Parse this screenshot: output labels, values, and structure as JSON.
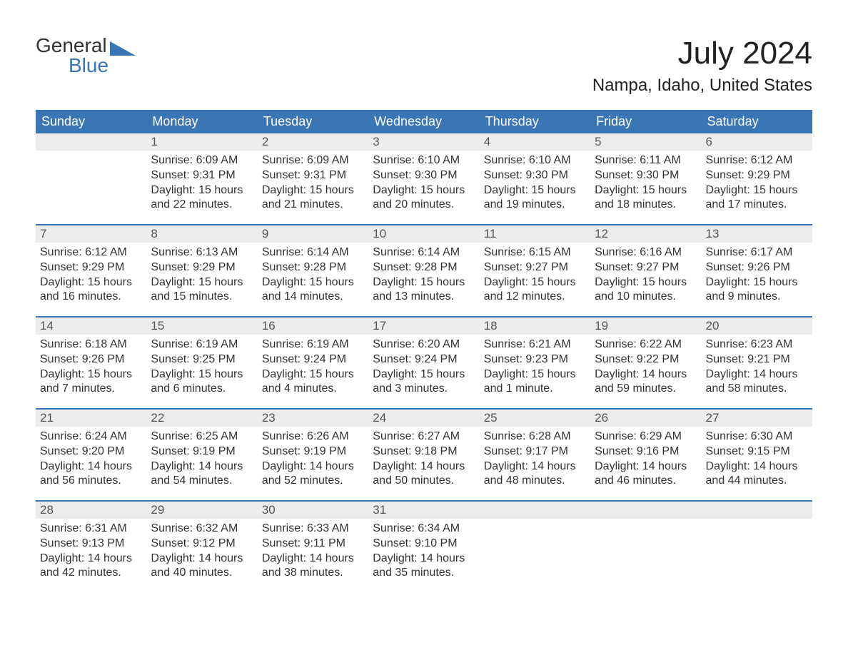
{
  "logo": {
    "word_top": "General",
    "word_bottom": "Blue",
    "flag_color": "#3a75b5",
    "text_gray": "#333333",
    "text_blue": "#3a75b5"
  },
  "title": {
    "month": "July 2024",
    "location": "Nampa, Idaho, United States"
  },
  "colors": {
    "header_bg": "#3a75b5",
    "header_text": "#ffffff",
    "daynum_bg": "#ececec",
    "daynum_text": "#555555",
    "body_text": "#333333",
    "week_border": "#3a75b5",
    "page_bg": "#ffffff"
  },
  "typography": {
    "title_fontsize": 44,
    "location_fontsize": 24,
    "dayheader_fontsize": 18,
    "daynum_fontsize": 17,
    "body_fontsize": 16,
    "logo_fontsize": 28
  },
  "weekdays": [
    "Sunday",
    "Monday",
    "Tuesday",
    "Wednesday",
    "Thursday",
    "Friday",
    "Saturday"
  ],
  "weeks": [
    [
      {
        "num": "",
        "sunrise": "",
        "sunset": "",
        "daylight": ""
      },
      {
        "num": "1",
        "sunrise": "Sunrise: 6:09 AM",
        "sunset": "Sunset: 9:31 PM",
        "daylight": "Daylight: 15 hours and 22 minutes."
      },
      {
        "num": "2",
        "sunrise": "Sunrise: 6:09 AM",
        "sunset": "Sunset: 9:31 PM",
        "daylight": "Daylight: 15 hours and 21 minutes."
      },
      {
        "num": "3",
        "sunrise": "Sunrise: 6:10 AM",
        "sunset": "Sunset: 9:30 PM",
        "daylight": "Daylight: 15 hours and 20 minutes."
      },
      {
        "num": "4",
        "sunrise": "Sunrise: 6:10 AM",
        "sunset": "Sunset: 9:30 PM",
        "daylight": "Daylight: 15 hours and 19 minutes."
      },
      {
        "num": "5",
        "sunrise": "Sunrise: 6:11 AM",
        "sunset": "Sunset: 9:30 PM",
        "daylight": "Daylight: 15 hours and 18 minutes."
      },
      {
        "num": "6",
        "sunrise": "Sunrise: 6:12 AM",
        "sunset": "Sunset: 9:29 PM",
        "daylight": "Daylight: 15 hours and 17 minutes."
      }
    ],
    [
      {
        "num": "7",
        "sunrise": "Sunrise: 6:12 AM",
        "sunset": "Sunset: 9:29 PM",
        "daylight": "Daylight: 15 hours and 16 minutes."
      },
      {
        "num": "8",
        "sunrise": "Sunrise: 6:13 AM",
        "sunset": "Sunset: 9:29 PM",
        "daylight": "Daylight: 15 hours and 15 minutes."
      },
      {
        "num": "9",
        "sunrise": "Sunrise: 6:14 AM",
        "sunset": "Sunset: 9:28 PM",
        "daylight": "Daylight: 15 hours and 14 minutes."
      },
      {
        "num": "10",
        "sunrise": "Sunrise: 6:14 AM",
        "sunset": "Sunset: 9:28 PM",
        "daylight": "Daylight: 15 hours and 13 minutes."
      },
      {
        "num": "11",
        "sunrise": "Sunrise: 6:15 AM",
        "sunset": "Sunset: 9:27 PM",
        "daylight": "Daylight: 15 hours and 12 minutes."
      },
      {
        "num": "12",
        "sunrise": "Sunrise: 6:16 AM",
        "sunset": "Sunset: 9:27 PM",
        "daylight": "Daylight: 15 hours and 10 minutes."
      },
      {
        "num": "13",
        "sunrise": "Sunrise: 6:17 AM",
        "sunset": "Sunset: 9:26 PM",
        "daylight": "Daylight: 15 hours and 9 minutes."
      }
    ],
    [
      {
        "num": "14",
        "sunrise": "Sunrise: 6:18 AM",
        "sunset": "Sunset: 9:26 PM",
        "daylight": "Daylight: 15 hours and 7 minutes."
      },
      {
        "num": "15",
        "sunrise": "Sunrise: 6:19 AM",
        "sunset": "Sunset: 9:25 PM",
        "daylight": "Daylight: 15 hours and 6 minutes."
      },
      {
        "num": "16",
        "sunrise": "Sunrise: 6:19 AM",
        "sunset": "Sunset: 9:24 PM",
        "daylight": "Daylight: 15 hours and 4 minutes."
      },
      {
        "num": "17",
        "sunrise": "Sunrise: 6:20 AM",
        "sunset": "Sunset: 9:24 PM",
        "daylight": "Daylight: 15 hours and 3 minutes."
      },
      {
        "num": "18",
        "sunrise": "Sunrise: 6:21 AM",
        "sunset": "Sunset: 9:23 PM",
        "daylight": "Daylight: 15 hours and 1 minute."
      },
      {
        "num": "19",
        "sunrise": "Sunrise: 6:22 AM",
        "sunset": "Sunset: 9:22 PM",
        "daylight": "Daylight: 14 hours and 59 minutes."
      },
      {
        "num": "20",
        "sunrise": "Sunrise: 6:23 AM",
        "sunset": "Sunset: 9:21 PM",
        "daylight": "Daylight: 14 hours and 58 minutes."
      }
    ],
    [
      {
        "num": "21",
        "sunrise": "Sunrise: 6:24 AM",
        "sunset": "Sunset: 9:20 PM",
        "daylight": "Daylight: 14 hours and 56 minutes."
      },
      {
        "num": "22",
        "sunrise": "Sunrise: 6:25 AM",
        "sunset": "Sunset: 9:19 PM",
        "daylight": "Daylight: 14 hours and 54 minutes."
      },
      {
        "num": "23",
        "sunrise": "Sunrise: 6:26 AM",
        "sunset": "Sunset: 9:19 PM",
        "daylight": "Daylight: 14 hours and 52 minutes."
      },
      {
        "num": "24",
        "sunrise": "Sunrise: 6:27 AM",
        "sunset": "Sunset: 9:18 PM",
        "daylight": "Daylight: 14 hours and 50 minutes."
      },
      {
        "num": "25",
        "sunrise": "Sunrise: 6:28 AM",
        "sunset": "Sunset: 9:17 PM",
        "daylight": "Daylight: 14 hours and 48 minutes."
      },
      {
        "num": "26",
        "sunrise": "Sunrise: 6:29 AM",
        "sunset": "Sunset: 9:16 PM",
        "daylight": "Daylight: 14 hours and 46 minutes."
      },
      {
        "num": "27",
        "sunrise": "Sunrise: 6:30 AM",
        "sunset": "Sunset: 9:15 PM",
        "daylight": "Daylight: 14 hours and 44 minutes."
      }
    ],
    [
      {
        "num": "28",
        "sunrise": "Sunrise: 6:31 AM",
        "sunset": "Sunset: 9:13 PM",
        "daylight": "Daylight: 14 hours and 42 minutes."
      },
      {
        "num": "29",
        "sunrise": "Sunrise: 6:32 AM",
        "sunset": "Sunset: 9:12 PM",
        "daylight": "Daylight: 14 hours and 40 minutes."
      },
      {
        "num": "30",
        "sunrise": "Sunrise: 6:33 AM",
        "sunset": "Sunset: 9:11 PM",
        "daylight": "Daylight: 14 hours and 38 minutes."
      },
      {
        "num": "31",
        "sunrise": "Sunrise: 6:34 AM",
        "sunset": "Sunset: 9:10 PM",
        "daylight": "Daylight: 14 hours and 35 minutes."
      },
      {
        "num": "",
        "sunrise": "",
        "sunset": "",
        "daylight": ""
      },
      {
        "num": "",
        "sunrise": "",
        "sunset": "",
        "daylight": ""
      },
      {
        "num": "",
        "sunrise": "",
        "sunset": "",
        "daylight": ""
      }
    ]
  ]
}
